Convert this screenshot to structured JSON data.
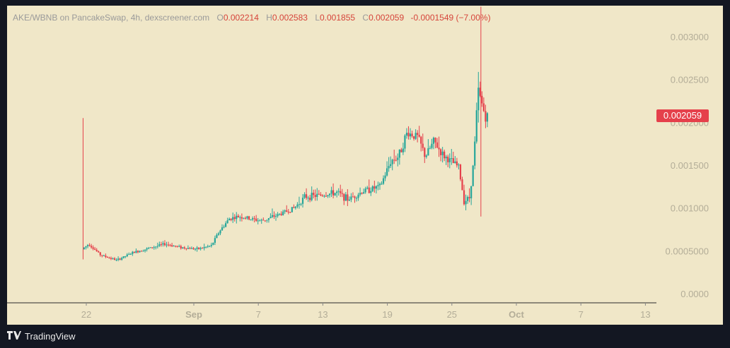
{
  "header": {
    "pair": "AKE/WBNB on PancakeSwap, 4h, dexscreener.com",
    "open_label": "O",
    "open": "0.002214",
    "high_label": "H",
    "high": "0.002583",
    "low_label": "L",
    "low": "0.001855",
    "close_label": "C",
    "close": "0.002059",
    "change": "-0.0001549 (−7.00%)"
  },
  "last_price_tag": "0.002059",
  "brand": {
    "name": "TradingView",
    "icon": "tradingview-logo-icon"
  },
  "colors": {
    "background": "#f0e7c8",
    "up": "#26a69a",
    "down": "#e5404b",
    "axis_text": "#b3ad98",
    "outer": "#131722"
  },
  "chart_data": {
    "type": "candlestick",
    "title": "AKE/WBNB on PancakeSwap, 4h, dexscreener.com",
    "xlabel": "",
    "ylabel": "",
    "ylim": [
      0,
      0.0032
    ],
    "y_ticks": [
      "0.003000",
      "0.002500",
      "0.002000",
      "0.001500",
      "0.001000",
      "0.0005000",
      "0.0000"
    ],
    "y_tick_values": [
      0.003,
      0.0025,
      0.002,
      0.0015,
      0.001,
      0.0005,
      0
    ],
    "x_ticks": [
      "22",
      "Sep",
      "7",
      "13",
      "19",
      "25",
      "Oct",
      "7",
      "13"
    ],
    "x_tick_days": [
      22,
      32,
      38,
      44,
      50,
      56,
      62,
      68,
      74
    ],
    "x_unit": "days from Aug 0",
    "grid": false,
    "last_price": 0.002059,
    "trend_points": [
      [
        21.8,
        0.00052
      ],
      [
        22.4,
        0.00058
      ],
      [
        23.5,
        0.00045
      ],
      [
        25.0,
        0.00039
      ],
      [
        26.5,
        0.00048
      ],
      [
        28.0,
        0.00053
      ],
      [
        29.5,
        0.00058
      ],
      [
        31.0,
        0.00054
      ],
      [
        32.5,
        0.00052
      ],
      [
        33.8,
        0.00056
      ],
      [
        34.5,
        0.00072
      ],
      [
        35.5,
        0.00088
      ],
      [
        36.5,
        0.0009
      ],
      [
        37.5,
        0.00087
      ],
      [
        38.5,
        0.00085
      ],
      [
        40.0,
        0.00092
      ],
      [
        41.5,
        0.001
      ],
      [
        42.5,
        0.00113
      ],
      [
        44.0,
        0.00115
      ],
      [
        45.5,
        0.00118
      ],
      [
        46.5,
        0.0011
      ],
      [
        48.0,
        0.0012
      ],
      [
        49.5,
        0.00125
      ],
      [
        50.5,
        0.00155
      ],
      [
        51.2,
        0.0016
      ],
      [
        52.0,
        0.00188
      ],
      [
        53.0,
        0.00183
      ],
      [
        53.7,
        0.0016
      ],
      [
        54.5,
        0.00178
      ],
      [
        55.3,
        0.00162
      ],
      [
        56.0,
        0.00155
      ],
      [
        56.8,
        0.00148
      ],
      [
        57.3,
        0.00108
      ],
      [
        57.8,
        0.00112
      ],
      [
        58.2,
        0.00155
      ],
      [
        58.6,
        0.00238
      ],
      [
        59.0,
        0.0022
      ],
      [
        59.3,
        0.00206
      ]
    ],
    "spikes": [
      {
        "x": 21.7,
        "high": 0.00205,
        "low": 0.0004
      },
      {
        "x": 58.7,
        "high": 0.00335,
        "low": 0.0009
      }
    ]
  }
}
